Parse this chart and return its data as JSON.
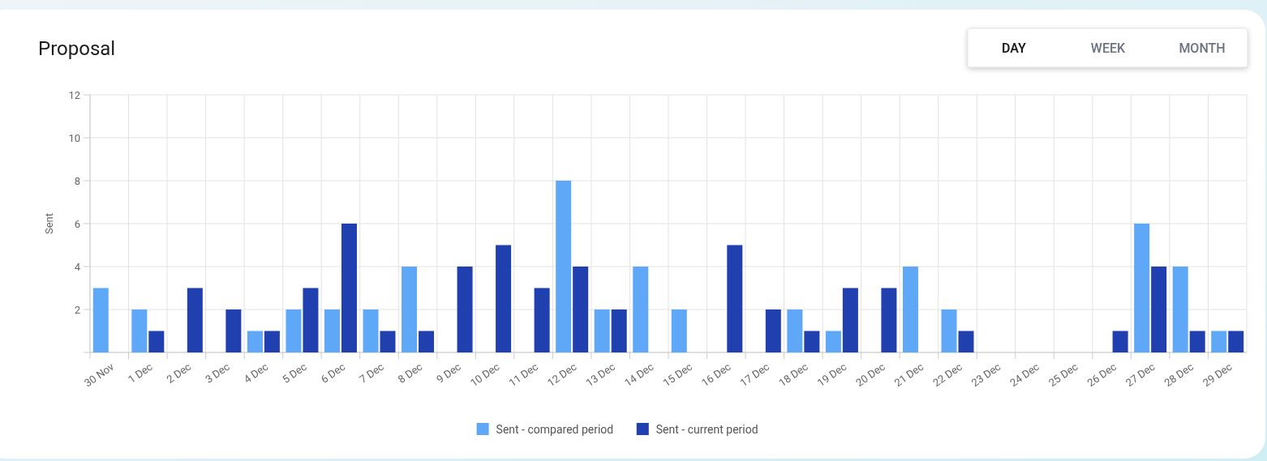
{
  "chart_data": {
    "type": "bar",
    "title": "Proposal",
    "ylabel": "Sent",
    "categories": [
      "30 Nov",
      "1 Dec",
      "2 Dec",
      "3 Dec",
      "4 Dec",
      "5 Dec",
      "6 Dec",
      "7 Dec",
      "8 Dec",
      "9 Dec",
      "10 Dec",
      "11 Dec",
      "12 Dec",
      "13 Dec",
      "14 Dec",
      "15 Dec",
      "16 Dec",
      "17 Dec",
      "18 Dec",
      "19 Dec",
      "20 Dec",
      "21 Dec",
      "22 Dec",
      "23 Dec",
      "24 Dec",
      "25 Dec",
      "26 Dec",
      "27 Dec",
      "28 Dec",
      "29 Dec"
    ],
    "series": [
      {
        "name": "Sent - compared period",
        "color": "#5fa8f7",
        "values": [
          3,
          2,
          0,
          0,
          1,
          2,
          2,
          2,
          4,
          0,
          0,
          0,
          8,
          2,
          4,
          2,
          0,
          0,
          2,
          1,
          0,
          4,
          2,
          0,
          0,
          0,
          0,
          6,
          4,
          1
        ]
      },
      {
        "name": "Sent - current period",
        "color": "#2140b0",
        "values": [
          0,
          1,
          3,
          2,
          1,
          3,
          6,
          1,
          1,
          4,
          5,
          3,
          4,
          2,
          0,
          0,
          5,
          2,
          1,
          3,
          3,
          0,
          1,
          0,
          0,
          0,
          1,
          4,
          1,
          1
        ]
      }
    ],
    "ylim": [
      0,
      12
    ],
    "yticks": [
      {
        "value": 0,
        "label": null
      },
      2,
      4,
      6,
      8,
      10,
      12
    ],
    "grid": true,
    "legend": "bottom",
    "annotations": [
      "DAY",
      "WEEK",
      "MONTH"
    ]
  }
}
